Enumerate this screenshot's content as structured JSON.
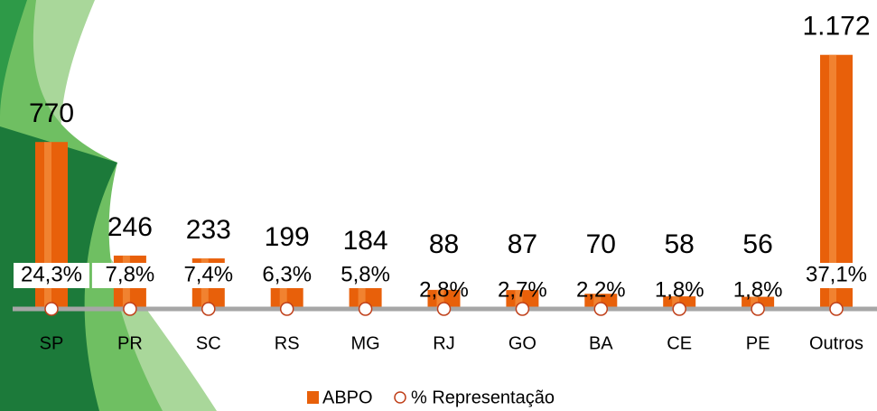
{
  "chart_data": {
    "type": "bar",
    "categories": [
      "SP",
      "PR",
      "SC",
      "RS",
      "MG",
      "RJ",
      "GO",
      "BA",
      "CE",
      "PE",
      "Outros"
    ],
    "series": [
      {
        "name": "ABPO",
        "color": "#e8600a",
        "values": [
          770,
          246,
          233,
          199,
          184,
          88,
          87,
          70,
          58,
          56,
          1172
        ],
        "value_labels": [
          "770",
          "246",
          "233",
          "199",
          "184",
          "88",
          "87",
          "70",
          "58",
          "56",
          "1.172"
        ]
      },
      {
        "name": "% Representação",
        "color": "#c0401a",
        "values": [
          24.3,
          7.8,
          7.4,
          6.3,
          5.8,
          2.8,
          2.7,
          2.2,
          1.8,
          1.8,
          37.1
        ],
        "value_labels": [
          "24,3%",
          "7,8%",
          "7,4%",
          "6,3%",
          "5,8%",
          "2,8%",
          "2,7%",
          "2,2%",
          "1,8%",
          "1,8%",
          "37,1%"
        ]
      }
    ],
    "ylim": [
      0,
      1300
    ]
  }
}
